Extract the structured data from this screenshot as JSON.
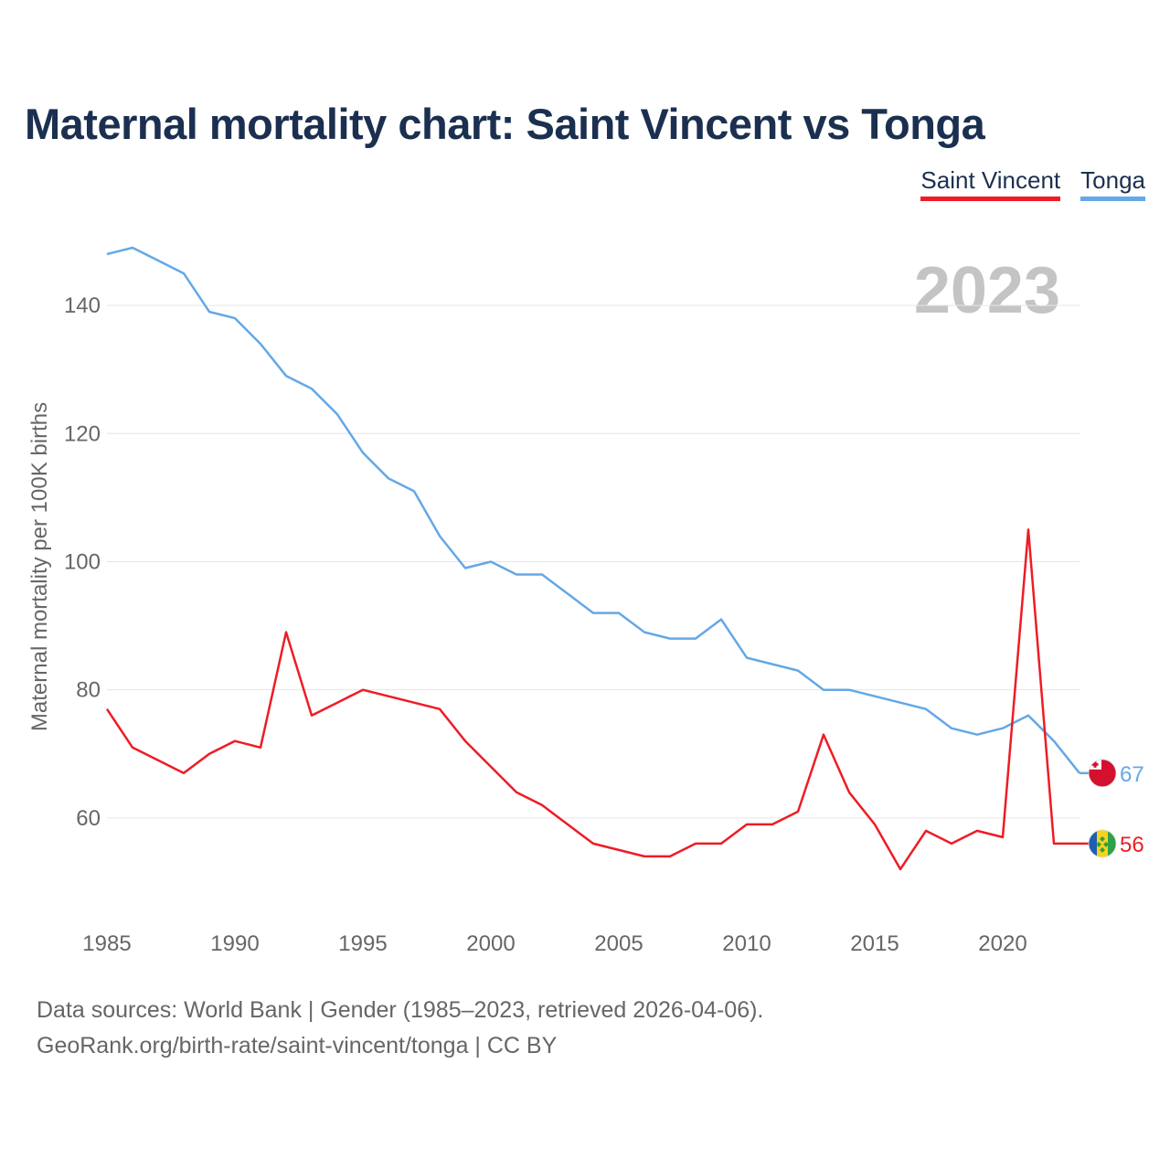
{
  "header": {
    "title": "Maternal mortality chart: Saint Vincent vs Tonga"
  },
  "legend": {
    "items": [
      {
        "label": "Saint Vincent",
        "color": "#ee1c25"
      },
      {
        "label": "Tonga",
        "color": "#64a8e6"
      }
    ]
  },
  "chart_data": {
    "type": "line",
    "title": "Maternal mortality chart: Saint Vincent vs Tonga",
    "ylabel": "Maternal mortality per 100K births",
    "xlabel": "",
    "year_label": "2023",
    "x": [
      1985,
      1986,
      1987,
      1988,
      1989,
      1990,
      1991,
      1992,
      1993,
      1994,
      1995,
      1996,
      1997,
      1998,
      1999,
      2000,
      2001,
      2002,
      2003,
      2004,
      2005,
      2006,
      2007,
      2008,
      2009,
      2010,
      2011,
      2012,
      2013,
      2014,
      2015,
      2016,
      2017,
      2018,
      2019,
      2020,
      2021,
      2022,
      2023
    ],
    "xlim": [
      1985,
      2023
    ],
    "ylim": [
      45,
      152
    ],
    "xticks": [
      1985,
      1990,
      1995,
      2000,
      2005,
      2010,
      2015,
      2020
    ],
    "yticks": [
      60,
      80,
      100,
      120,
      140
    ],
    "grid": true,
    "series": [
      {
        "name": "Tonga",
        "color": "#64a8e6",
        "end_label": "67",
        "flag": "tonga-flag",
        "values": [
          148,
          149,
          147,
          145,
          139,
          138,
          134,
          129,
          127,
          123,
          117,
          113,
          111,
          104,
          99,
          100,
          98,
          98,
          95,
          92,
          92,
          89,
          88,
          88,
          91,
          85,
          84,
          83,
          80,
          80,
          79,
          78,
          77,
          74,
          73,
          74,
          76,
          72,
          67
        ]
      },
      {
        "name": "Saint Vincent",
        "color": "#ee1c25",
        "end_label": "56",
        "flag": "saint-vincent-flag",
        "values": [
          77,
          71,
          69,
          67,
          70,
          72,
          71,
          89,
          76,
          78,
          80,
          79,
          78,
          77,
          72,
          68,
          64,
          62,
          59,
          56,
          55,
          54,
          54,
          56,
          56,
          59,
          59,
          61,
          73,
          64,
          59,
          52,
          58,
          56,
          58,
          57,
          105,
          56,
          56
        ]
      }
    ]
  },
  "footer": {
    "source": "Data sources: World Bank | Gender (1985–2023, retrieved 2026-04-06).",
    "credit": "GeoRank.org/birth-rate/saint-vincent/tonga | CC BY"
  }
}
